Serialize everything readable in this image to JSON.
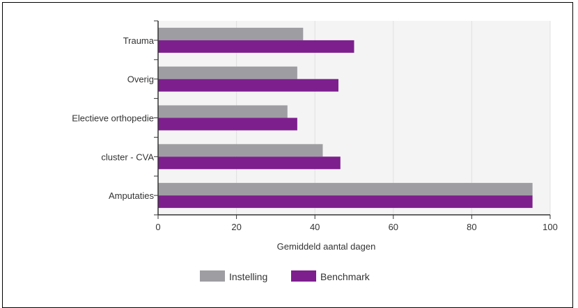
{
  "chart_data": {
    "type": "bar",
    "orientation": "horizontal",
    "categories": [
      "Trauma",
      "Overig",
      "Electieve orthopedie",
      "cluster - CVA",
      "Amputaties"
    ],
    "series": [
      {
        "name": "Instelling",
        "color": "#9e9ea2",
        "values": [
          37,
          35.5,
          33,
          42,
          95.5
        ]
      },
      {
        "name": "Benchmark",
        "color": "#7e1f8e",
        "values": [
          50,
          46,
          35.5,
          46.5,
          95.5
        ]
      }
    ],
    "title": "",
    "xlabel": "Gemiddeld aantal dagen",
    "ylabel": "",
    "xlim": [
      0,
      100
    ],
    "xticks": [
      0,
      20,
      40,
      60,
      80,
      100
    ],
    "grid": true,
    "legend_position": "bottom",
    "plot_background": "#f4f4f4"
  }
}
